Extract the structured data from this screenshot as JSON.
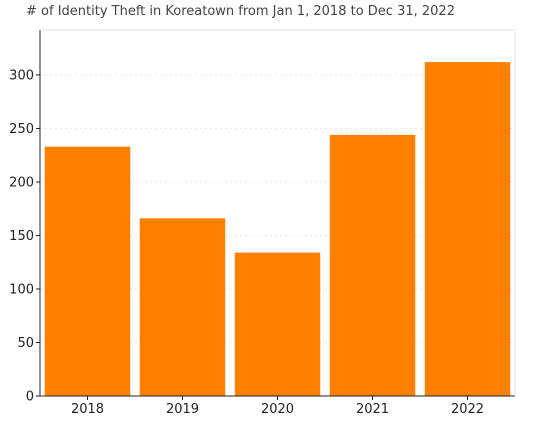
{
  "chart_data": {
    "type": "bar",
    "title": "# of Identity Theft in Koreatown from Jan 1, 2018 to Dec 31, 2022",
    "xlabel": "",
    "ylabel": "",
    "categories": [
      "2018",
      "2019",
      "2020",
      "2021",
      "2022"
    ],
    "values": [
      233,
      166,
      134,
      244,
      312
    ],
    "ylim": [
      0,
      342
    ],
    "yticks": [
      0,
      50,
      100,
      150,
      200,
      250,
      300
    ],
    "grid": true,
    "bar_color": "#ff8000",
    "legend": "none"
  }
}
